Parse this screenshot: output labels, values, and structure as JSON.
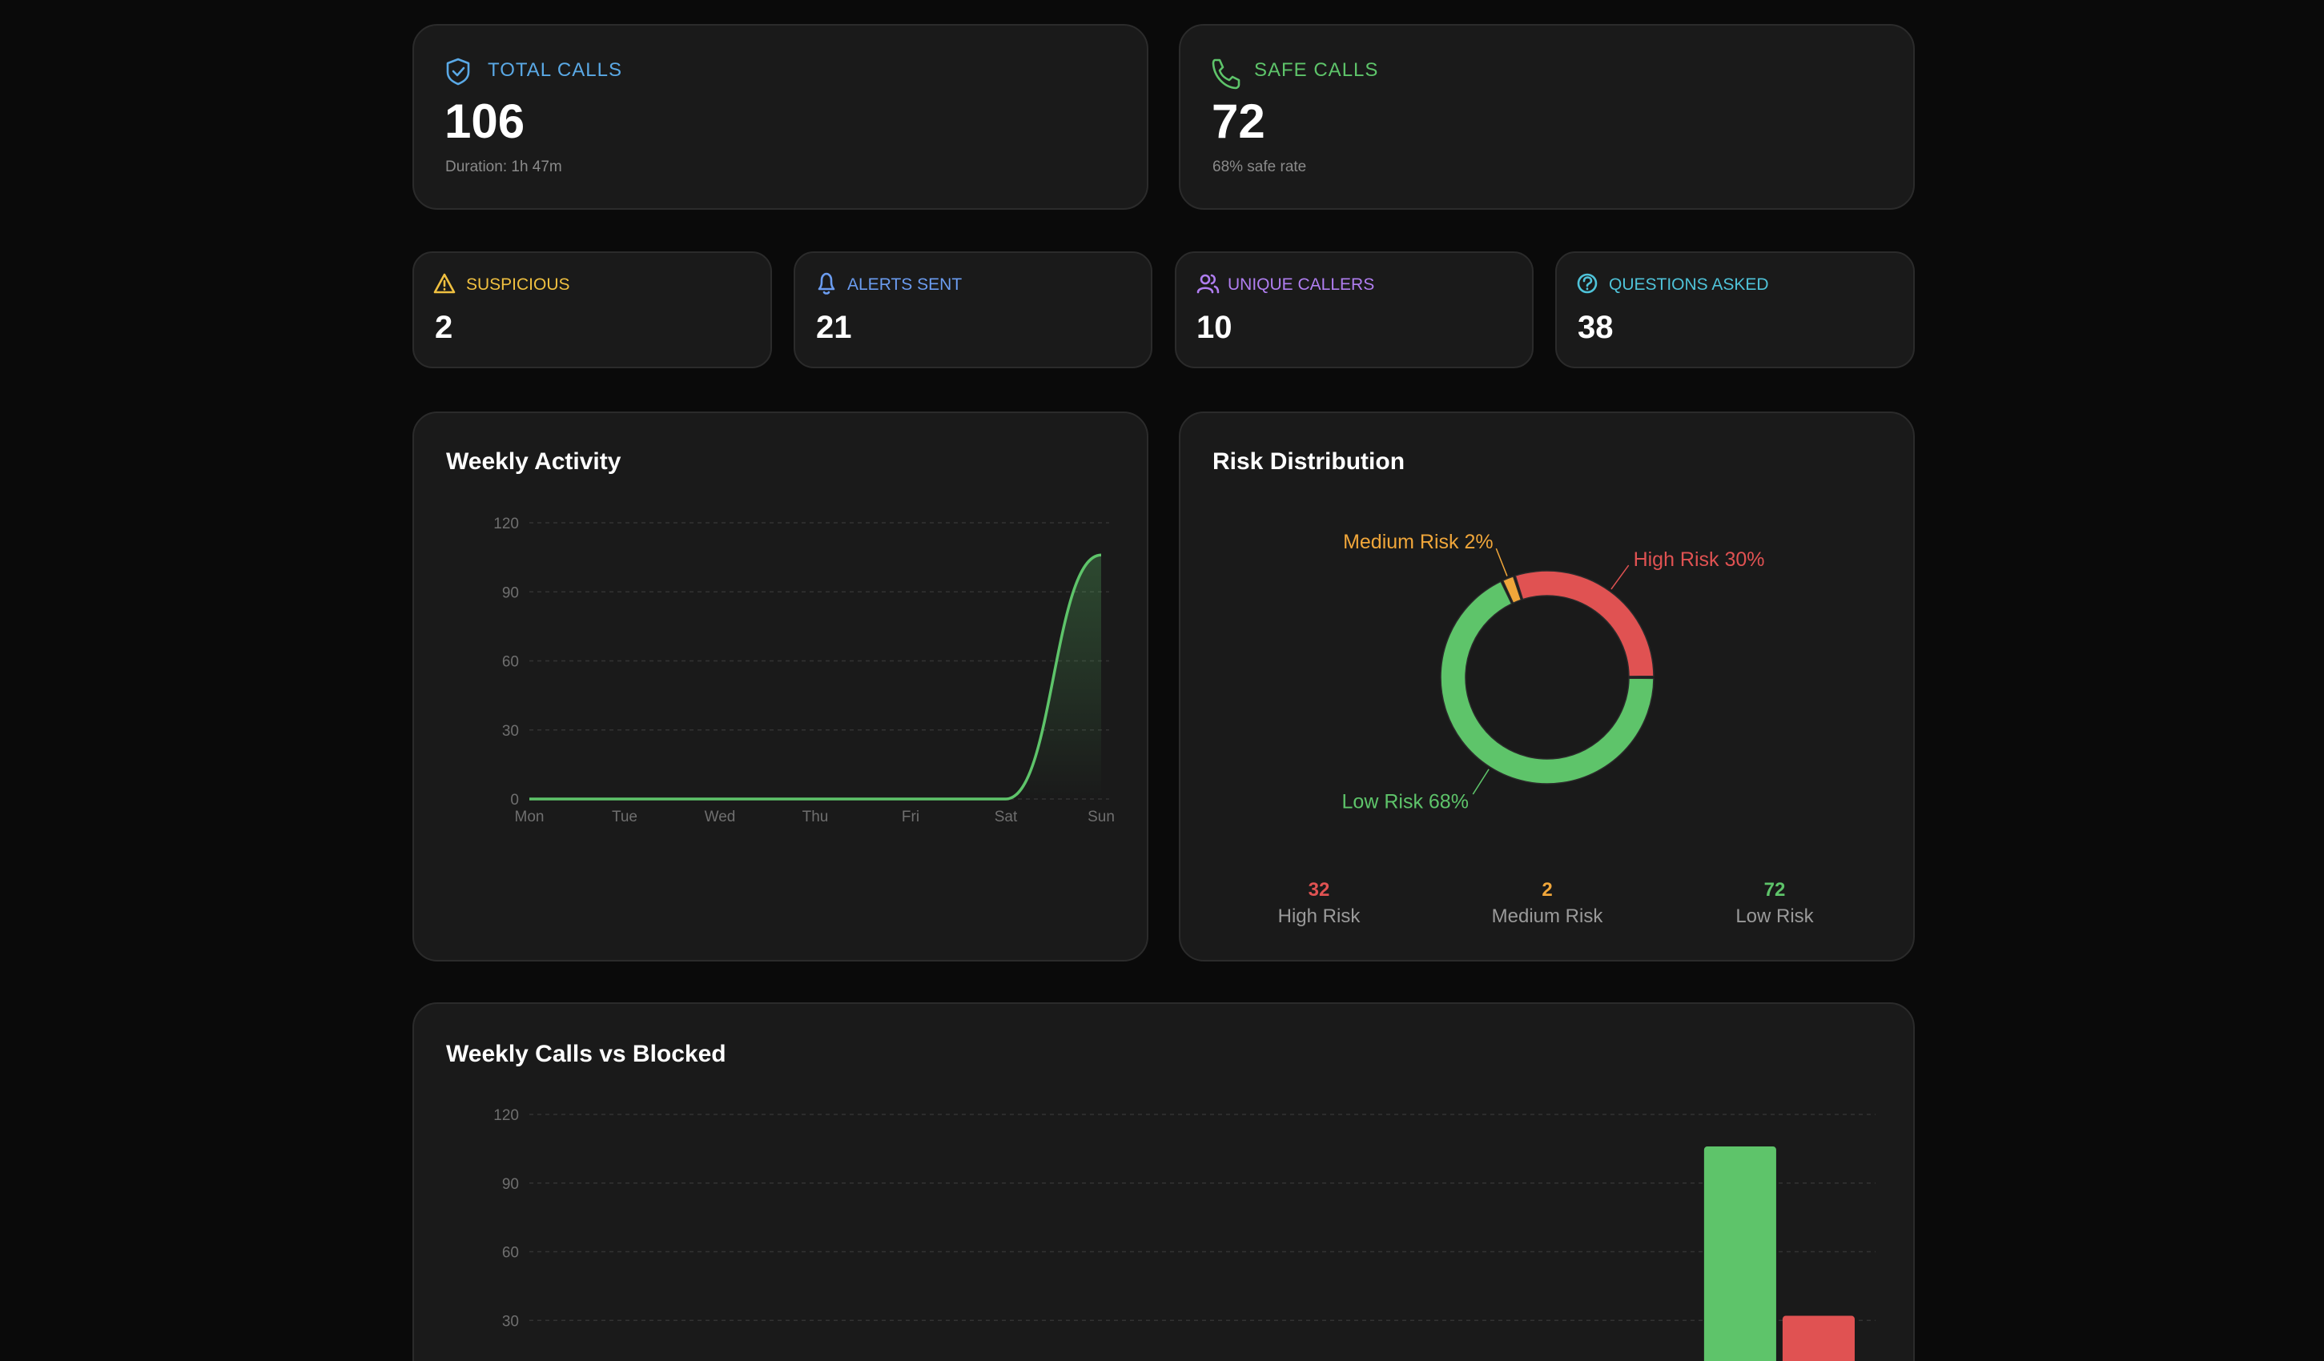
{
  "cards": [
    {
      "label": "TOTAL CALLS",
      "value": 106,
      "note": "Duration: 1h 47m"
    },
    {
      "label": "SAFE CALLS",
      "value": 72,
      "note": "68% safe rate"
    }
  ],
  "small_cards": [
    {
      "label": "SUSPICIOUS",
      "value": 2
    },
    {
      "label": "ALERTS SENT",
      "value": 21
    },
    {
      "label": "UNIQUE CALLERS",
      "value": 10
    },
    {
      "label": "QUESTIONS ASKED",
      "value": 38
    }
  ],
  "chart_data": [
    {
      "type": "line",
      "title": "Weekly Activity",
      "categories": [
        "Mon",
        "Tue",
        "Wed",
        "Thu",
        "Fri",
        "Sat",
        "Sun"
      ],
      "values": [
        0,
        0,
        0,
        0,
        0,
        0,
        106
      ],
      "color": "#5ec46a",
      "ylim": [
        0,
        120
      ],
      "yticks": [
        0,
        30,
        60,
        90,
        120
      ],
      "grid": true
    },
    {
      "type": "donut",
      "title": "Risk Distribution",
      "categories": [
        "High Risk",
        "Medium Risk",
        "Low Risk"
      ],
      "values": [
        30,
        2,
        68
      ],
      "value_labels": [
        "High Risk 30%",
        "Medium Risk 2%",
        "Low Risk 68%"
      ],
      "counts": [
        32,
        2,
        72
      ],
      "colors": [
        "#e05252",
        "#f0a63a",
        "#5ec46a"
      ]
    },
    {
      "type": "bar",
      "title": "Weekly Calls vs Blocked",
      "series": [
        {
          "color": "#5ec46a",
          "values": [
            0,
            0,
            0,
            0,
            0,
            0,
            106
          ]
        },
        {
          "color": "#e05252",
          "values": [
            0,
            0,
            0,
            0,
            0,
            0,
            32
          ]
        }
      ],
      "ylim": [
        0,
        120
      ],
      "yticks": [
        30,
        60,
        90,
        120
      ],
      "grid": true
    }
  ]
}
